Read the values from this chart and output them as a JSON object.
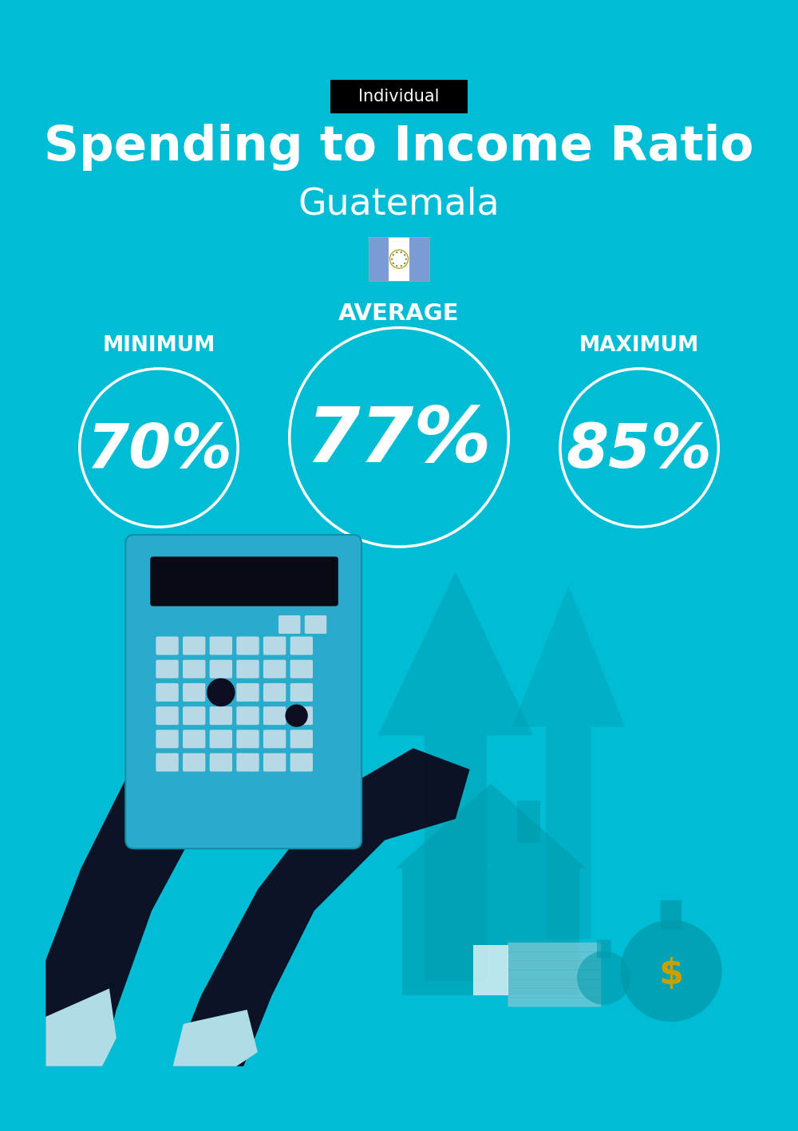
{
  "title": "Spending to Income Ratio",
  "subtitle": "Guatemala",
  "tag_label": "Individual",
  "tag_bg": "#000000",
  "tag_text_color": "#ffffff",
  "bg_color": "#00BCD4",
  "text_color": "#ffffff",
  "min_label": "MINIMUM",
  "avg_label": "AVERAGE",
  "max_label": "MAXIMUM",
  "min_value": "70%",
  "avg_value": "77%",
  "max_value": "85%",
  "circle_color": "#ffffff",
  "circle_linewidth": 2.5,
  "title_fontsize": 44,
  "subtitle_fontsize": 33,
  "tag_fontsize": 15,
  "label_fontsize": 19,
  "min_max_fontsize": 55,
  "avg_fontsize": 70,
  "flag_blue": "#7B9BD4",
  "flag_white": "#FFFFFF",
  "calc_body": "#2AABCB",
  "calc_screen": "#0a0a14",
  "calc_btn": "#cce0ea",
  "hand_dark": "#0d0d20",
  "hand_cuff": "#b0dce8",
  "arrow_color": "#0097A7",
  "house_color": "#0097A7",
  "money_bag_color": "#0097A7",
  "money_sign_color": "#c8a000",
  "bg_gradient_bottom": "#00ACC1"
}
